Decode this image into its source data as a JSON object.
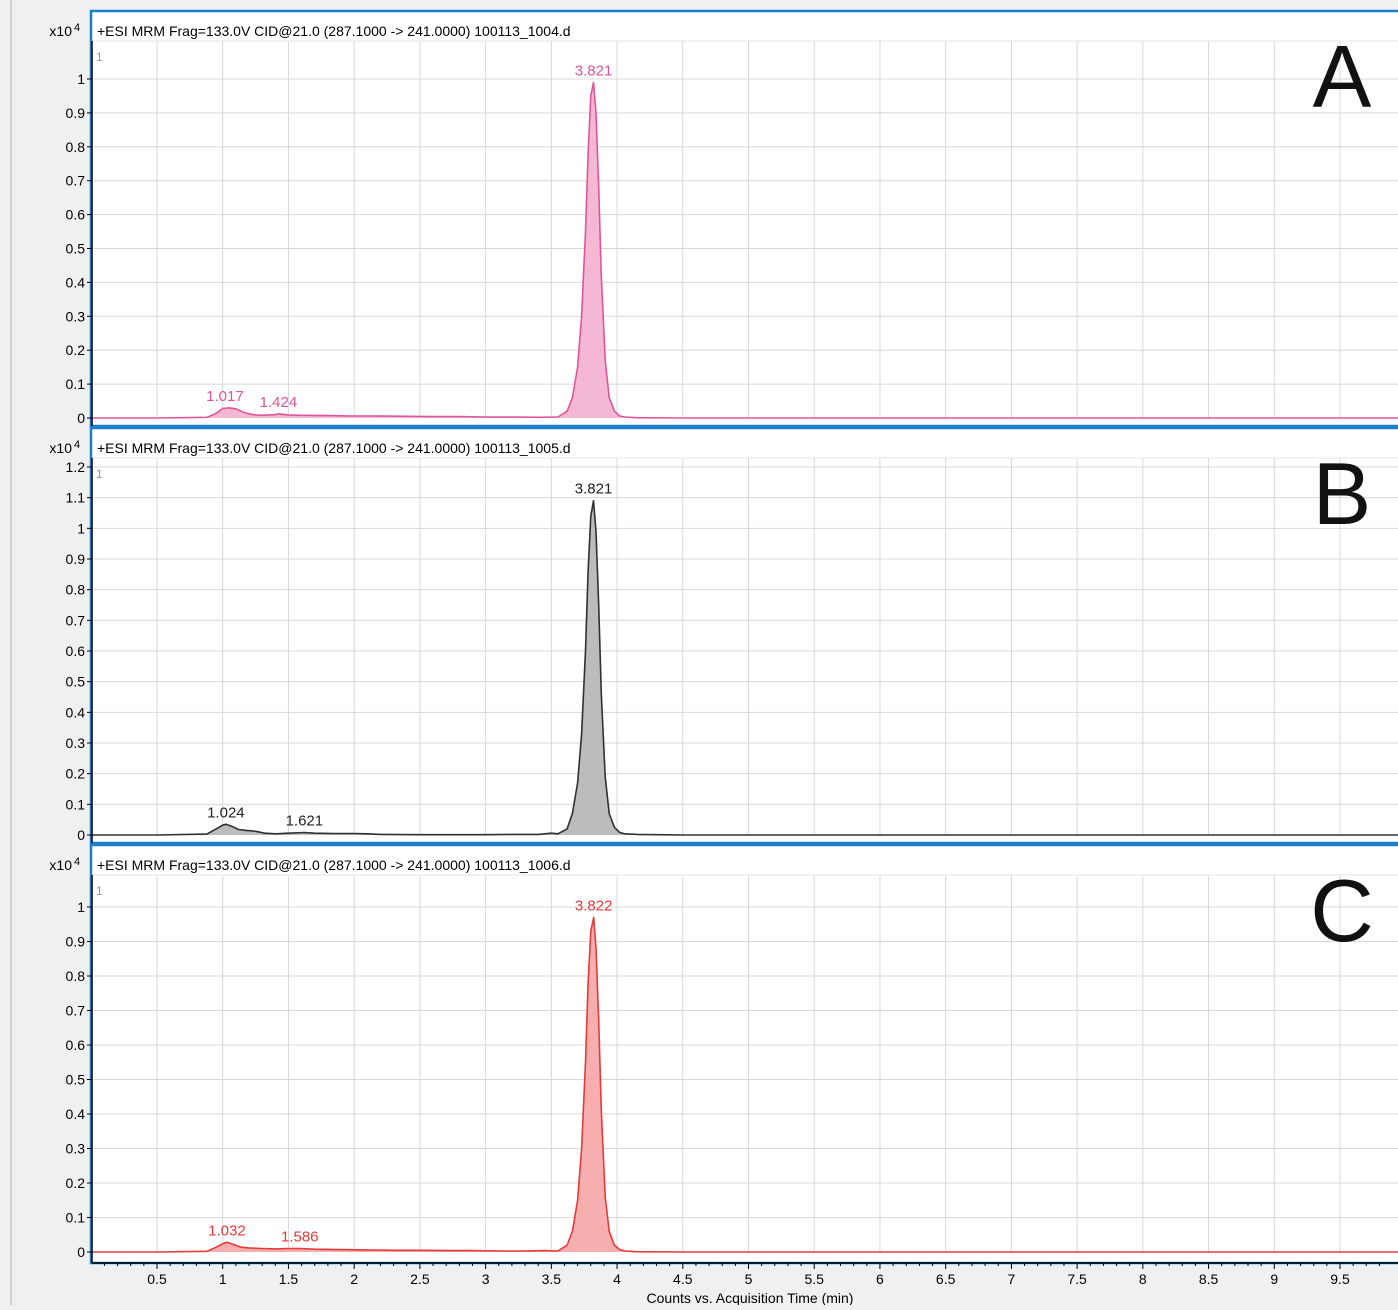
{
  "chart_data": [
    {
      "type": "area",
      "panel_letter": "A",
      "title": "+ESI MRM Frag=133.0V CID@21.0 (287.1000 -> 241.0000) 100113_1004.d",
      "y_multiplier": "x10",
      "y_exponent": "4",
      "corner_tag": "1",
      "color": "#e0559a",
      "fill": "#f5b8d4",
      "xlim": [
        0,
        10
      ],
      "ylim": [
        0,
        1.1
      ],
      "yticks": [
        0,
        0.1,
        0.2,
        0.3,
        0.4,
        0.5,
        0.6,
        0.7,
        0.8,
        0.9,
        1
      ],
      "peaks": [
        {
          "x": 1.017,
          "y": 0.03,
          "label": "1.017"
        },
        {
          "x": 1.424,
          "y": 0.012,
          "label": "1.424"
        },
        {
          "x": 3.821,
          "y": 0.99,
          "label": "3.821"
        }
      ],
      "x": [
        0.0,
        0.5,
        0.88,
        0.95,
        1.0,
        1.05,
        1.1,
        1.15,
        1.2,
        1.25,
        1.3,
        1.4,
        1.424,
        1.5,
        1.6,
        1.8,
        2.0,
        2.2,
        2.4,
        2.6,
        2.8,
        3.0,
        3.2,
        3.4,
        3.55,
        3.62,
        3.66,
        3.7,
        3.73,
        3.76,
        3.78,
        3.8,
        3.821,
        3.84,
        3.86,
        3.88,
        3.91,
        3.94,
        3.98,
        4.02,
        4.06,
        4.15,
        4.5,
        5.0,
        6.0,
        7.0,
        8.0,
        9.0,
        10.0
      ],
      "y": [
        0.0,
        0.0,
        0.002,
        0.014,
        0.028,
        0.03,
        0.027,
        0.018,
        0.012,
        0.009,
        0.008,
        0.01,
        0.012,
        0.009,
        0.008,
        0.007,
        0.006,
        0.006,
        0.005,
        0.004,
        0.004,
        0.003,
        0.003,
        0.002,
        0.003,
        0.02,
        0.06,
        0.15,
        0.3,
        0.55,
        0.78,
        0.95,
        0.99,
        0.9,
        0.68,
        0.42,
        0.17,
        0.06,
        0.02,
        0.006,
        0.003,
        0.001,
        0.0,
        0.0,
        0.0,
        0.0,
        0.0,
        0.0,
        0.0
      ]
    },
    {
      "type": "area",
      "panel_letter": "B",
      "title": "+ESI MRM Frag=133.0V CID@21.0 (287.1000 -> 241.0000) 100113_1005.d",
      "y_multiplier": "x10",
      "y_exponent": "4",
      "corner_tag": "1",
      "color": "#303030",
      "fill": "#bcbcbc",
      "xlim": [
        0,
        10
      ],
      "ylim": [
        0,
        1.2
      ],
      "yticks": [
        0,
        0.1,
        0.2,
        0.3,
        0.4,
        0.5,
        0.6,
        0.7,
        0.8,
        0.9,
        1,
        1.1,
        1.2
      ],
      "peaks": [
        {
          "x": 1.024,
          "y": 0.035,
          "label": "1.024"
        },
        {
          "x": 1.621,
          "y": 0.008,
          "label": "1.621"
        },
        {
          "x": 3.821,
          "y": 1.09,
          "label": "3.821"
        }
      ],
      "x": [
        0.0,
        0.5,
        0.88,
        0.95,
        1.0,
        1.024,
        1.07,
        1.12,
        1.18,
        1.25,
        1.32,
        1.4,
        1.5,
        1.621,
        1.7,
        1.85,
        2.0,
        2.1,
        2.2,
        2.5,
        3.0,
        3.2,
        3.4,
        3.5,
        3.55,
        3.62,
        3.66,
        3.7,
        3.73,
        3.76,
        3.78,
        3.8,
        3.821,
        3.84,
        3.86,
        3.88,
        3.91,
        3.94,
        3.98,
        4.02,
        4.06,
        4.15,
        4.5,
        5.0,
        6.0,
        7.0,
        8.0,
        9.0,
        10.0
      ],
      "y": [
        0.0,
        0.0,
        0.003,
        0.02,
        0.032,
        0.035,
        0.028,
        0.018,
        0.015,
        0.012,
        0.006,
        0.004,
        0.006,
        0.008,
        0.006,
        0.005,
        0.005,
        0.004,
        0.002,
        0.001,
        0.001,
        0.002,
        0.002,
        0.006,
        0.004,
        0.02,
        0.07,
        0.17,
        0.33,
        0.6,
        0.86,
        1.04,
        1.09,
        0.99,
        0.75,
        0.46,
        0.19,
        0.07,
        0.025,
        0.008,
        0.004,
        0.002,
        0.0,
        0.0,
        0.0,
        0.0,
        0.0,
        0.0,
        0.0
      ]
    },
    {
      "type": "area",
      "panel_letter": "C",
      "title": "+ESI MRM Frag=133.0V CID@21.0 (287.1000 -> 241.0000) 100113_1006.d",
      "y_multiplier": "x10",
      "y_exponent": "4",
      "corner_tag": "1",
      "color": "#e83a3a",
      "fill": "#f7aeae",
      "xlim": [
        0,
        10
      ],
      "ylim": [
        0,
        1.1
      ],
      "yticks": [
        0,
        0.1,
        0.2,
        0.3,
        0.4,
        0.5,
        0.6,
        0.7,
        0.8,
        0.9,
        1
      ],
      "peaks": [
        {
          "x": 1.032,
          "y": 0.028,
          "label": "1.032"
        },
        {
          "x": 1.586,
          "y": 0.01,
          "label": "1.586"
        },
        {
          "x": 3.822,
          "y": 0.97,
          "label": "3.822"
        }
      ],
      "x": [
        0.0,
        0.5,
        0.88,
        0.95,
        1.0,
        1.032,
        1.08,
        1.14,
        1.2,
        1.3,
        1.4,
        1.5,
        1.586,
        1.7,
        1.9,
        2.1,
        2.3,
        2.5,
        2.7,
        2.9,
        3.1,
        3.3,
        3.45,
        3.55,
        3.62,
        3.66,
        3.7,
        3.73,
        3.76,
        3.78,
        3.8,
        3.822,
        3.84,
        3.86,
        3.88,
        3.91,
        3.94,
        3.98,
        4.02,
        4.06,
        4.15,
        4.5,
        5.0,
        6.0,
        7.0,
        8.0,
        9.0,
        10.0
      ],
      "y": [
        0.0,
        0.0,
        0.002,
        0.014,
        0.024,
        0.028,
        0.022,
        0.014,
        0.012,
        0.01,
        0.009,
        0.01,
        0.01,
        0.008,
        0.007,
        0.006,
        0.005,
        0.005,
        0.004,
        0.004,
        0.003,
        0.003,
        0.004,
        0.003,
        0.02,
        0.06,
        0.15,
        0.3,
        0.55,
        0.78,
        0.93,
        0.97,
        0.88,
        0.67,
        0.41,
        0.16,
        0.06,
        0.02,
        0.007,
        0.003,
        0.001,
        0.0,
        0.0,
        0.0,
        0.0,
        0.0,
        0.0,
        0.0
      ]
    }
  ],
  "x_axis": {
    "label": "Counts vs. Acquisition Time (min)",
    "ticks": [
      "0.5",
      "1",
      "1.5",
      "2",
      "2.5",
      "3",
      "3.5",
      "4",
      "4.5",
      "5",
      "5.5",
      "6",
      "6.5",
      "7",
      "7.5",
      "8",
      "8.5",
      "9",
      "9.5"
    ],
    "tick_values": [
      0.5,
      1,
      1.5,
      2,
      2.5,
      3,
      3.5,
      4,
      4.5,
      5,
      5.5,
      6,
      6.5,
      7,
      7.5,
      8,
      8.5,
      9,
      9.5
    ]
  },
  "colors": {
    "frame": "#1a7fc9",
    "grid": "#d8d8d8",
    "axis": "#000000",
    "background": "#f0f0f0",
    "plot_background": "#ffffff"
  }
}
